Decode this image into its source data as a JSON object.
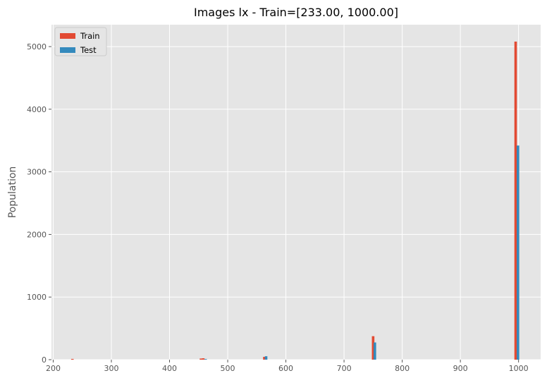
{
  "chart_data": {
    "type": "bar",
    "title": "Images lx - Train=[233.00, 1000.00]",
    "xlabel": "",
    "ylabel": "Population",
    "xlim": [
      197,
      1038
    ],
    "ylim": [
      0,
      5350
    ],
    "x_ticks": [
      200,
      300,
      400,
      500,
      600,
      700,
      800,
      900,
      1000
    ],
    "y_ticks": [
      0,
      1000,
      2000,
      3000,
      4000,
      5000
    ],
    "grid": true,
    "legend_position": "top-left",
    "series": [
      {
        "name": "Train",
        "color": "#E24A33",
        "points": [
          {
            "x": 233,
            "y": 12
          },
          {
            "x": 454,
            "y": 18
          },
          {
            "x": 458,
            "y": 22
          },
          {
            "x": 563,
            "y": 45
          },
          {
            "x": 750,
            "y": 375
          },
          {
            "x": 995,
            "y": 5080
          }
        ]
      },
      {
        "name": "Test",
        "color": "#348ABD",
        "points": [
          {
            "x": 462,
            "y": 10
          },
          {
            "x": 566,
            "y": 55
          },
          {
            "x": 753,
            "y": 275
          },
          {
            "x": 999,
            "y": 3420
          }
        ]
      }
    ]
  }
}
